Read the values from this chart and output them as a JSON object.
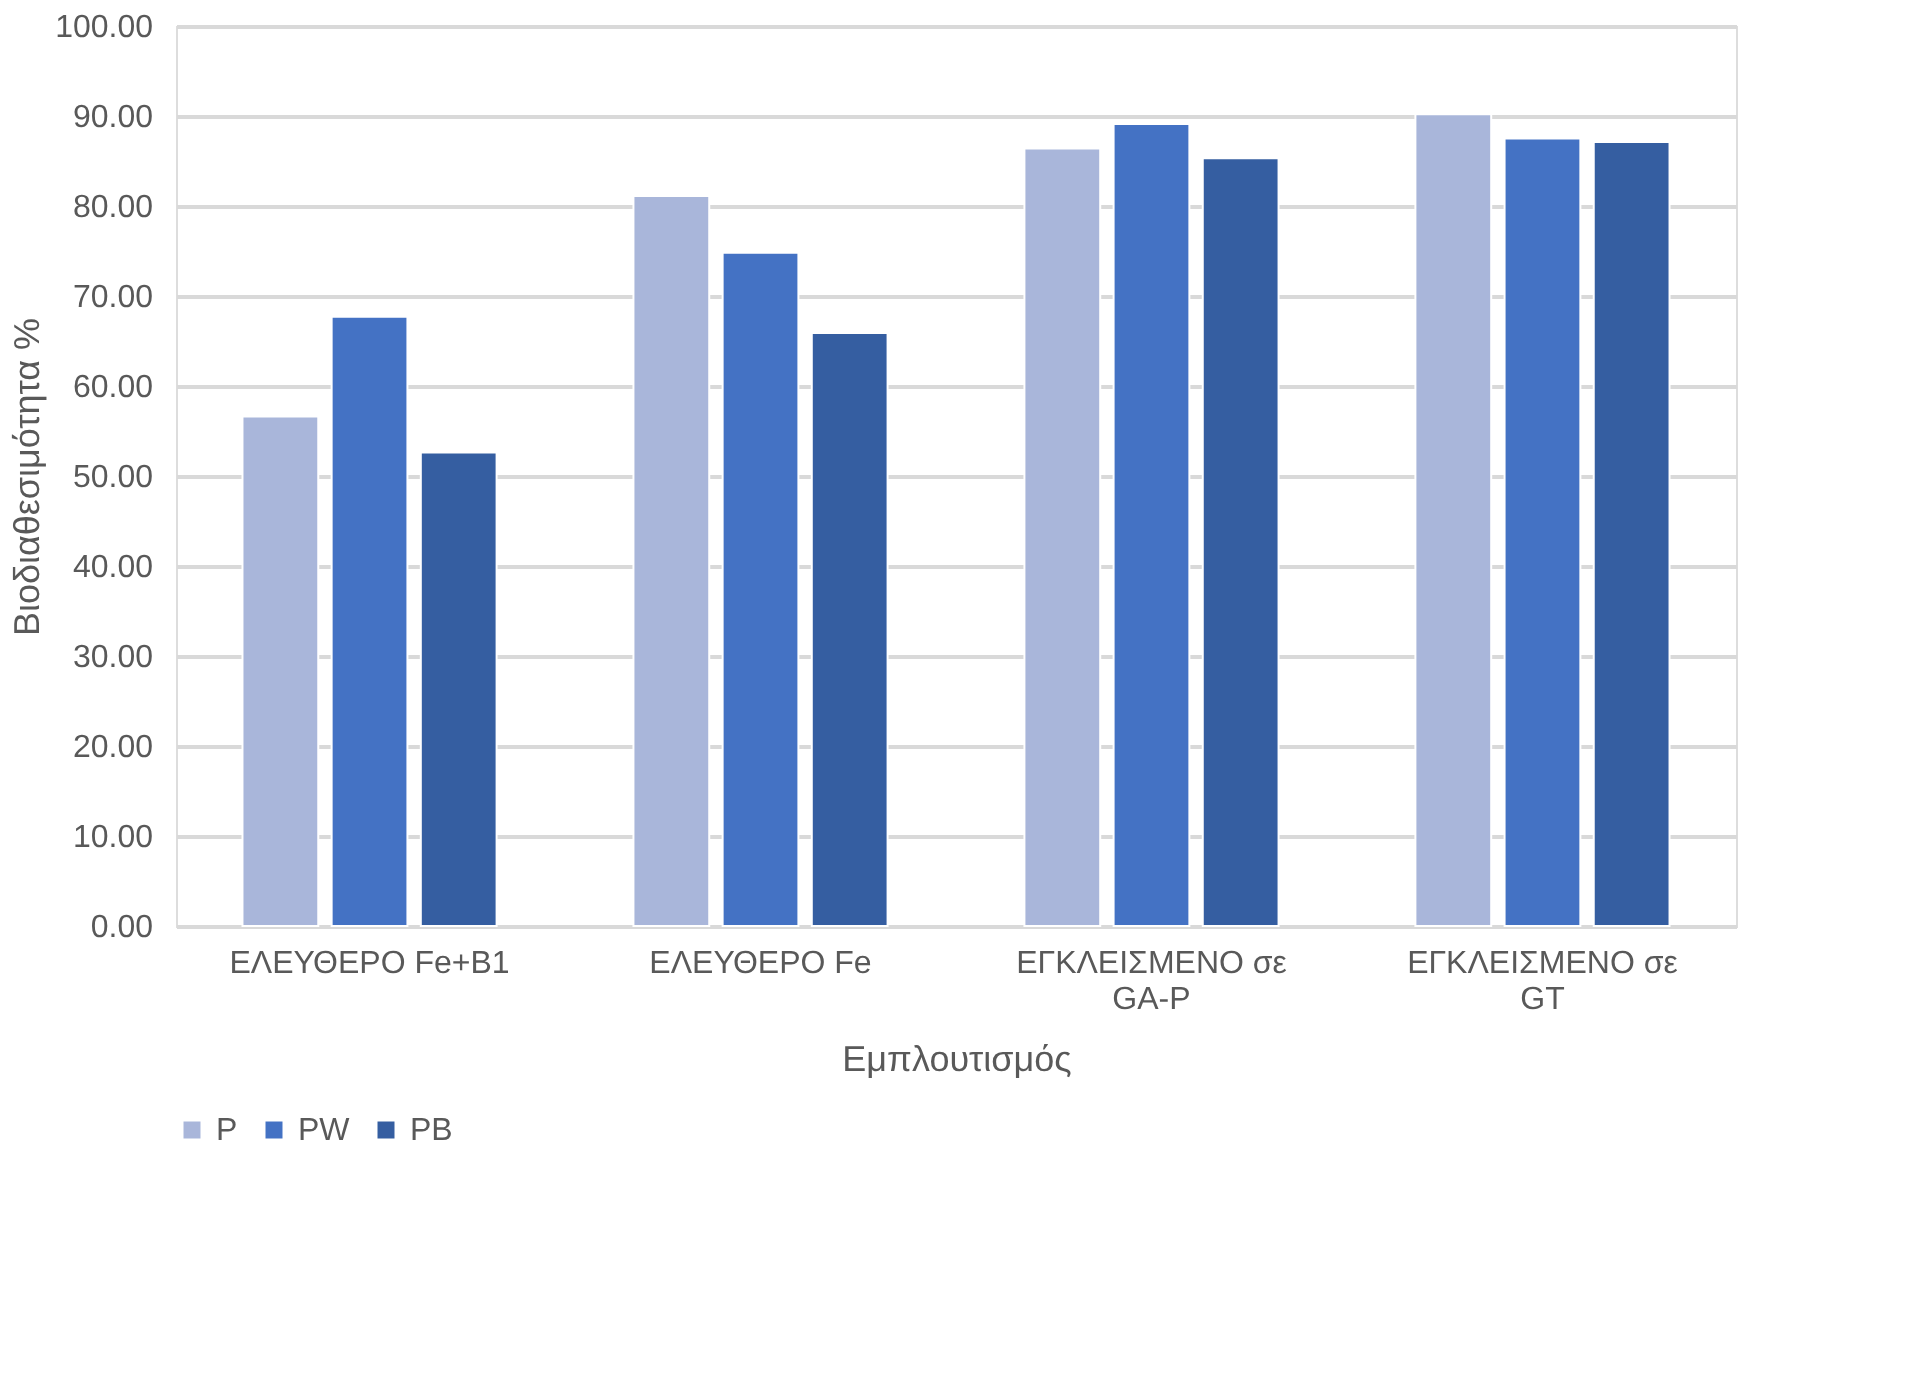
{
  "chart_data": {
    "type": "bar",
    "xlabel": "Εμπλουτισμός",
    "ylabel": "Βιοδιαθεσιμότητα %",
    "categories": [
      "ΕΛΕΥΘΕΡΟ Fe+B1",
      "ΕΛΕΥΘΕΡΟ Fe",
      "ΕΓΚΛΕΙΣΜΕΝΟ σε GA-P",
      "ΕΓΚΛΕΙΣΜΕΝΟ σε GT"
    ],
    "series": [
      {
        "name": "P",
        "color": "#a9b6da",
        "values": [
          56.6,
          81.1,
          86.4,
          90.2
        ]
      },
      {
        "name": "PW",
        "color": "#4472c4",
        "values": [
          67.7,
          74.8,
          89.1,
          87.5
        ]
      },
      {
        "name": "PB",
        "color": "#355ea1",
        "values": [
          52.6,
          65.9,
          85.3,
          87.1
        ]
      }
    ],
    "ylim": [
      0,
      100
    ],
    "yticks": [
      {
        "value": 0,
        "label": "0.00"
      },
      {
        "value": 10,
        "label": "10.00"
      },
      {
        "value": 20,
        "label": "20.00"
      },
      {
        "value": 30,
        "label": "30.00"
      },
      {
        "value": 40,
        "label": "40.00"
      },
      {
        "value": 50,
        "label": "50.00"
      },
      {
        "value": 60,
        "label": "60.00"
      },
      {
        "value": 70,
        "label": "70.00"
      },
      {
        "value": 80,
        "label": "80.00"
      },
      {
        "value": 90,
        "label": "90.00"
      },
      {
        "value": 100,
        "label": "100.00"
      }
    ],
    "grid": "y",
    "legend": "bottom"
  }
}
